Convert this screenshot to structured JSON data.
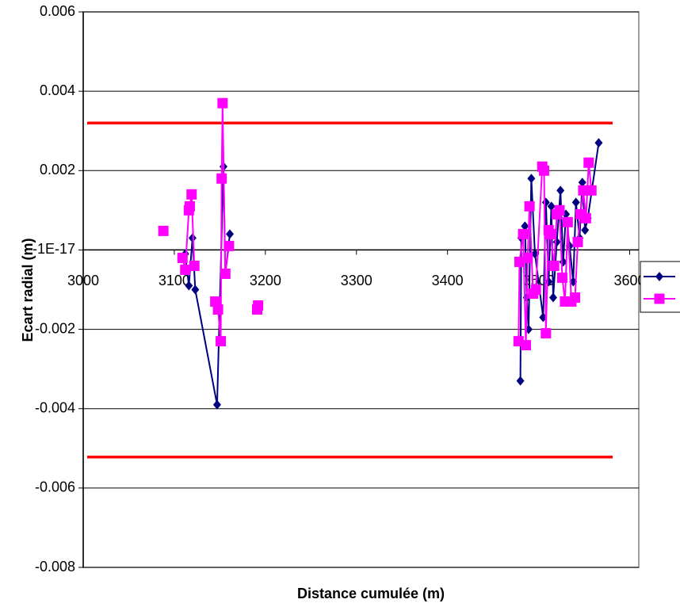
{
  "chart_data": {
    "type": "line",
    "x_label": "Distance cumulée (m)",
    "y_label": "Ecart radial (m)",
    "xlim": [
      3000,
      3610
    ],
    "xticks": [
      3000,
      3100,
      3200,
      3300,
      3400,
      3500,
      3600
    ],
    "ylim": [
      -0.008,
      0.006
    ],
    "yticks": [
      -0.008,
      -0.006,
      -0.004,
      -0.002,
      {
        "value": -1e-17,
        "label": "-1E-17"
      },
      0.002,
      0.004,
      0.006
    ],
    "grid": true,
    "legend_position": "right",
    "reference_lines": [
      {
        "value": 0.0032,
        "color": "#ff0000"
      },
      {
        "value": -0.00522,
        "color": "#ff0000"
      }
    ],
    "series": [
      {
        "color": "#000080",
        "marker": "diamond",
        "x": [
          3112,
          3116,
          3120,
          3123,
          3147,
          3154,
          3156,
          3161,
          null,
          3480,
          3481,
          3485,
          3487,
          3489,
          3492,
          3496,
          3505,
          3508,
          3511,
          3514,
          3516,
          3520,
          3524,
          3527,
          3530,
          3534,
          3538,
          3541,
          3545,
          3548,
          3551,
          3554,
          3566
        ],
        "values": [
          -0.0001,
          -0.0009,
          0.0003,
          -0.001,
          -0.0039,
          0.0021,
          -0.0006,
          0.0004,
          null,
          -0.0033,
          0.0003,
          0.0006,
          -0.0012,
          -0.002,
          0.0018,
          -0.0001,
          -0.0017,
          0.0012,
          -0.0008,
          0.0011,
          -0.0012,
          0.0002,
          0.0015,
          -0.0003,
          0.0009,
          0.0001,
          -0.0008,
          0.0012,
          0.0003,
          0.0017,
          0.0005,
          0.0008,
          0.0027
        ]
      },
      {
        "color": "#ff00ff",
        "marker": "square",
        "x": [
          3088,
          null,
          3109,
          3112,
          3116,
          3117,
          3119,
          3122,
          null,
          3145,
          3148,
          3151,
          3152,
          3153,
          3156,
          3160,
          null,
          3191,
          3192,
          null,
          3478,
          3479,
          3483,
          3486,
          3488,
          3490,
          3494,
          3497,
          3504,
          3506,
          3508,
          3511,
          3513,
          3517,
          3520,
          3523,
          3526,
          3529,
          3532,
          3536,
          3540,
          3543,
          3546,
          3549,
          3552,
          3555,
          3558
        ],
        "values": [
          0.00048,
          null,
          -0.0002,
          -0.0005,
          0.001,
          0.0011,
          0.0014,
          -0.0004,
          null,
          -0.0013,
          -0.0015,
          -0.0023,
          0.0018,
          0.0037,
          -0.0006,
          0.0001,
          null,
          -0.0015,
          -0.0014,
          null,
          -0.0023,
          -0.0003,
          0.0004,
          -0.0024,
          -0.0002,
          0.0011,
          -0.0011,
          -0.001,
          0.0021,
          0.002,
          -0.0021,
          0.0005,
          0.0004,
          -0.0004,
          0.0009,
          0.001,
          -0.0007,
          -0.0013,
          0.0007,
          -0.0013,
          -0.0012,
          0.0002,
          0.0009,
          0.0015,
          0.0008,
          0.0022,
          0.0015
        ]
      }
    ]
  }
}
